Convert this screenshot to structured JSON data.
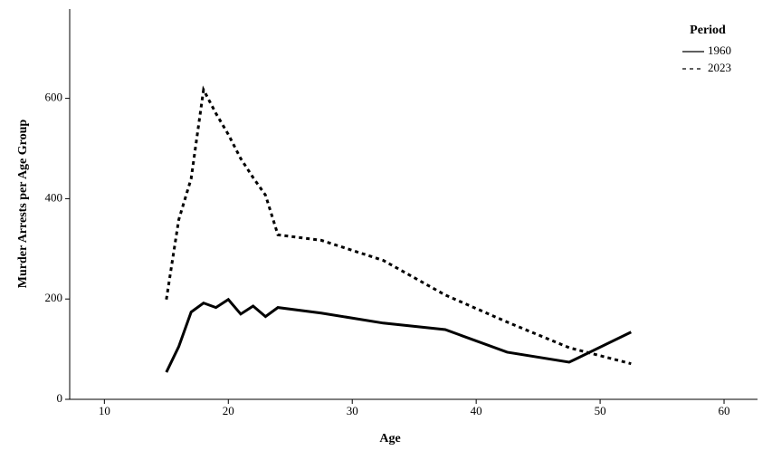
{
  "chart_data": {
    "type": "line",
    "x_label": "Age",
    "y_label": "Murder Arrests per Age Group",
    "x": [
      15,
      16,
      17,
      18,
      19,
      20,
      21,
      22,
      23,
      24,
      27.5,
      32.5,
      37.5,
      42.5,
      47.5,
      52.5
    ],
    "series": [
      {
        "name": "1960",
        "color": "#000000",
        "dash": "solid",
        "values": [
          54,
          105,
          174,
          192,
          183,
          199,
          170,
          186,
          165,
          183,
          172,
          152,
          139,
          94,
          74,
          134
        ]
      },
      {
        "name": "2023",
        "color": "#000000",
        "dash": "dashed",
        "values": [
          199,
          358,
          440,
          617,
          570,
          528,
          480,
          442,
          407,
          328,
          317,
          277,
          208,
          154,
          103,
          71
        ]
      }
    ],
    "xlim": [
      7.2,
      62.7
    ],
    "xticks": [
      10,
      20,
      30,
      40,
      50,
      60
    ],
    "ylim": [
      0,
      778
    ],
    "yticks": [
      0,
      200,
      400,
      600
    ],
    "legend": {
      "title": "Period",
      "position": "upper right"
    },
    "grid": false
  }
}
